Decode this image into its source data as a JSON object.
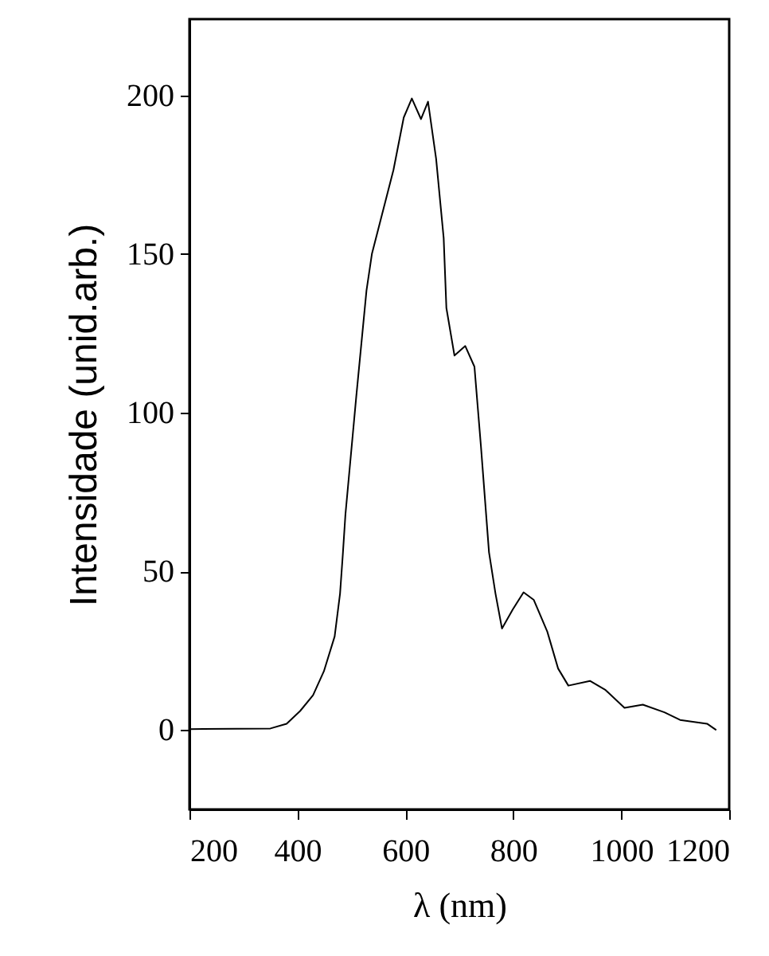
{
  "chart_data": {
    "type": "line",
    "xlabel": "λ (nm)",
    "ylabel": "Intensidade (unid.arb.)",
    "xlim": [
      200,
      1200
    ],
    "xticks": [
      200,
      400,
      600,
      800,
      1000,
      1200
    ],
    "ylim": [
      -25,
      224
    ],
    "yticks": [
      0,
      50,
      100,
      150,
      200
    ],
    "grid": false,
    "marker": "none",
    "line_style": "solid",
    "series": [
      {
        "color": "#000000",
        "x": [
          200,
          350,
          380,
          405,
          429,
          449,
          469,
          479,
          484,
          489,
          509,
          528,
          538,
          578,
          597,
          612,
          629,
          642,
          657,
          671,
          676,
          691,
          711,
          728,
          740,
          755,
          767,
          779,
          799,
          819,
          838,
          863,
          883,
          902,
          942,
          971,
          1006,
          1040,
          1080,
          1109,
          1159,
          1176
        ],
        "values": [
          0.3,
          0.5,
          2,
          6,
          11,
          18.5,
          29.5,
          43,
          55,
          68,
          105,
          138.5,
          150,
          176.5,
          193,
          199,
          192.5,
          198,
          180,
          155,
          133,
          118,
          121,
          114.5,
          89.5,
          56,
          43,
          32,
          38,
          43.4,
          41,
          31,
          19.4,
          14,
          15.5,
          12.6,
          7,
          8,
          5.6,
          3.2,
          2,
          0
        ]
      }
    ]
  }
}
